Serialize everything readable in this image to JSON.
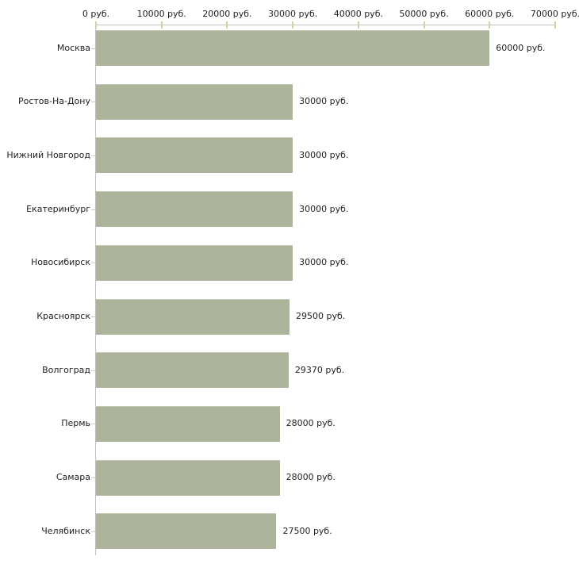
{
  "chart_data": {
    "type": "bar",
    "orientation": "horizontal",
    "title": "",
    "xlabel": "",
    "ylabel": "",
    "categories": [
      "Москва",
      "Ростов-На-Дону",
      "Нижний Новгород",
      "Екатеринбург",
      "Новосибирск",
      "Красноярск",
      "Волгоград",
      "Пермь",
      "Самара",
      "Челябинск"
    ],
    "values": [
      60000,
      30000,
      30000,
      30000,
      30000,
      29500,
      29370,
      28000,
      28000,
      27500
    ],
    "value_labels": [
      "60000 руб.",
      "30000 руб.",
      "30000 руб.",
      "30000 руб.",
      "30000 руб.",
      "29500 руб.",
      "29370 руб.",
      "28000 руб.",
      "28000 руб.",
      "27500 руб."
    ],
    "x_axis": {
      "position": "top",
      "min": 0,
      "max": 70000,
      "tick_values": [
        0,
        10000,
        20000,
        30000,
        40000,
        50000,
        60000,
        70000
      ],
      "tick_labels": [
        "0 руб.",
        "10000 руб.",
        "20000 руб.",
        "30000 руб.",
        "40000 руб.",
        "50000 руб.",
        "60000 руб.",
        "70000 руб."
      ]
    },
    "grid": false,
    "legend": false,
    "colors": {
      "bar": "#adb49c",
      "bar_top_edge": "#c5cab5",
      "axis_line": "#c0c0c0",
      "tick_mark": "#cfd2a6",
      "text": "#222222",
      "background": "#ffffff"
    }
  }
}
